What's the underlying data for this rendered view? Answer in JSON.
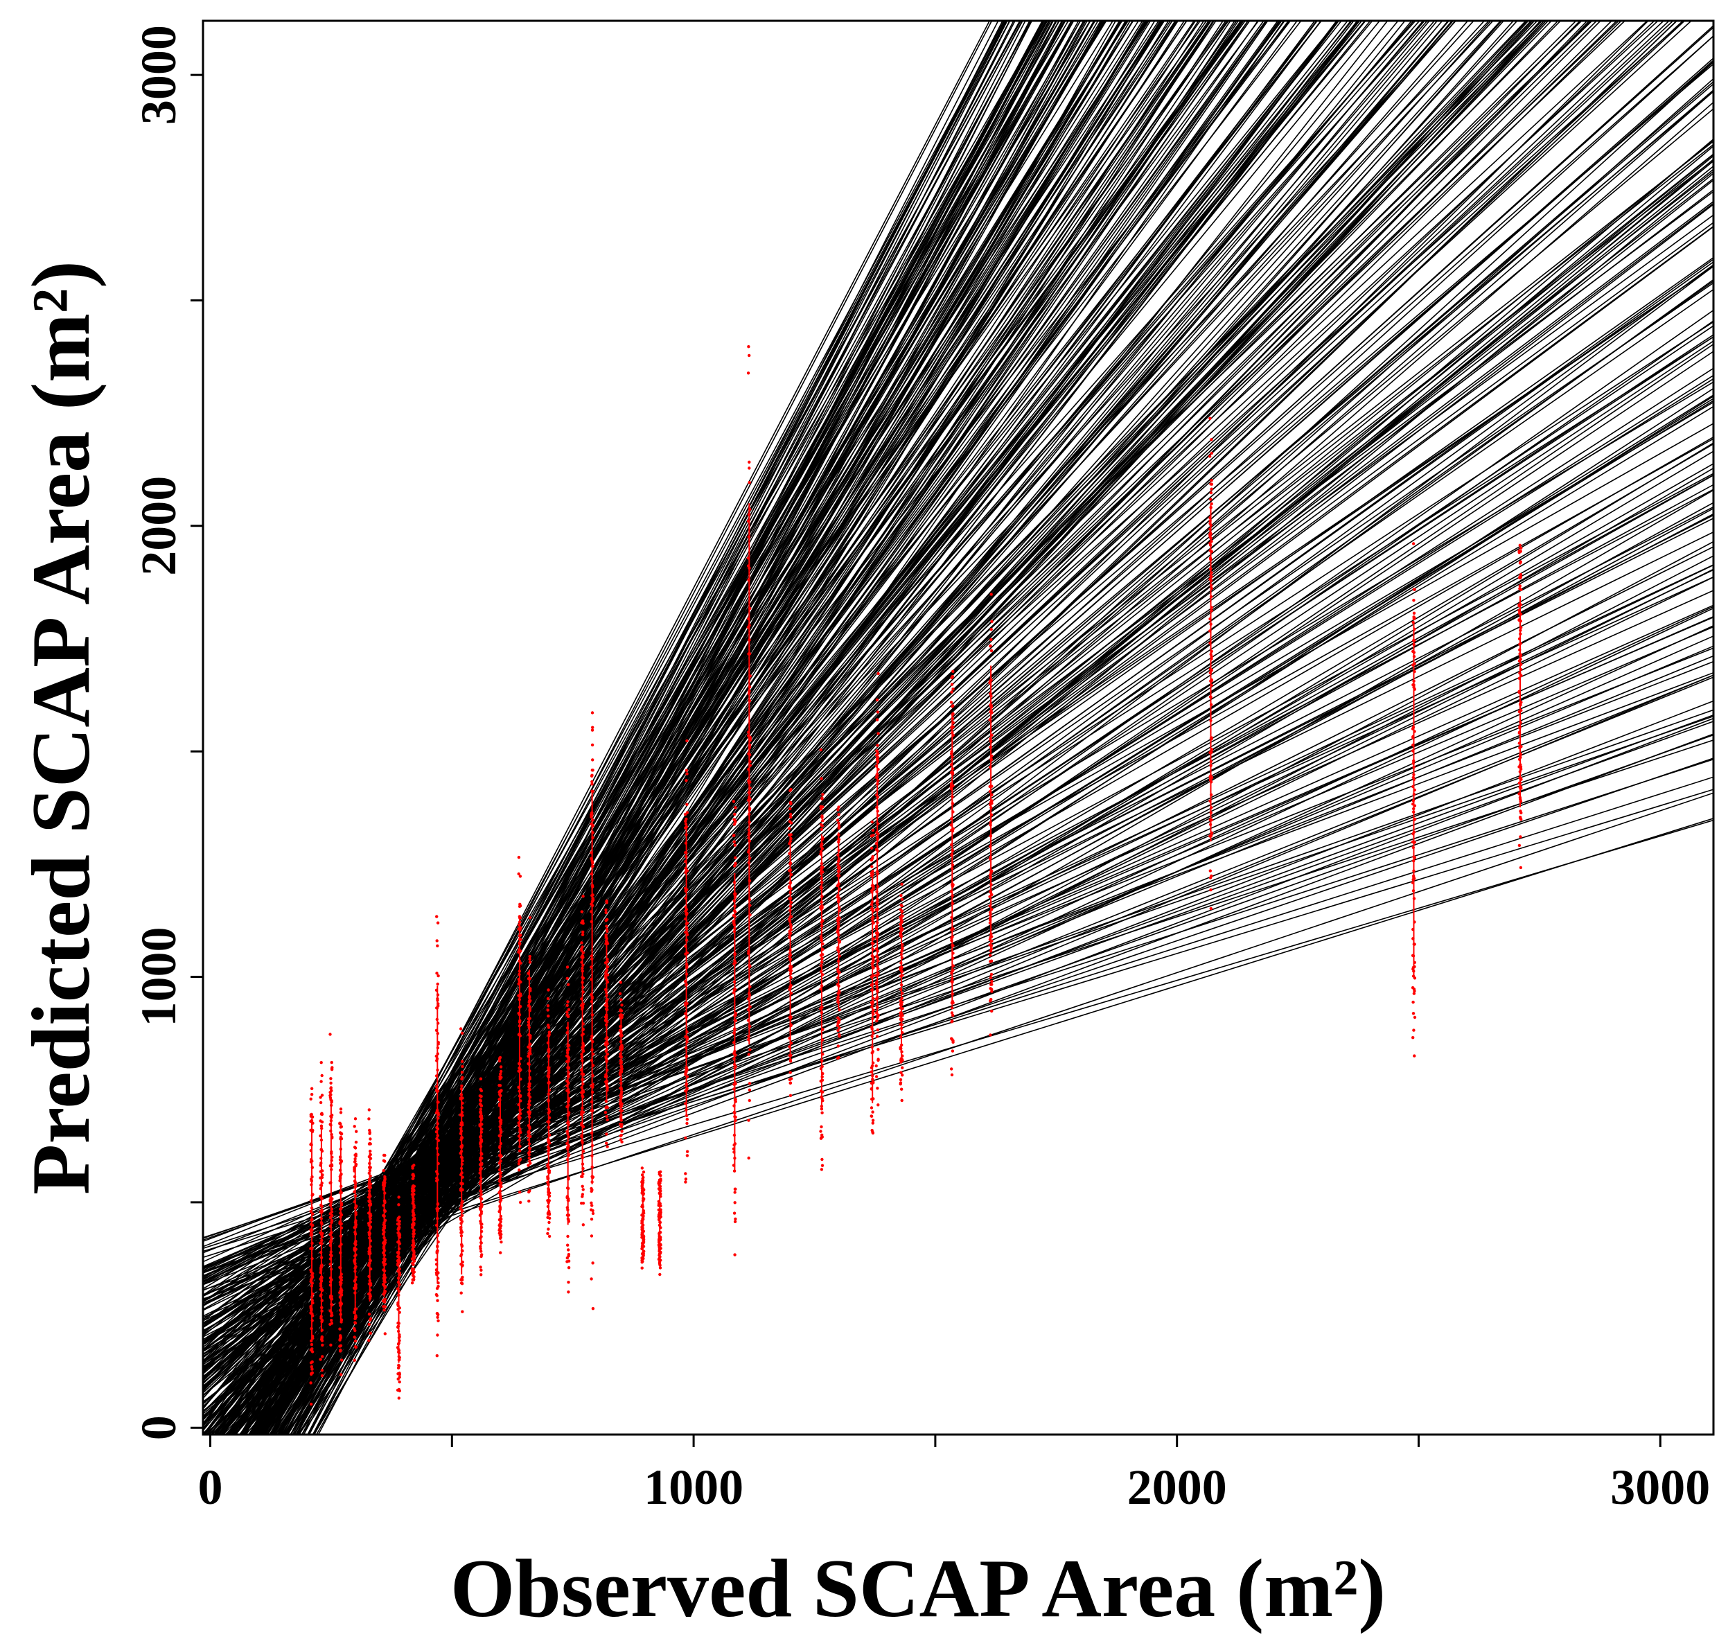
{
  "chart_data": {
    "type": "scatter",
    "title": "",
    "xlabel": "Observed SCAP Area (m²)",
    "ylabel": "Predicted SCAP Area (m²)",
    "xlim": [
      -15,
      3110
    ],
    "ylim": [
      -15,
      3120
    ],
    "x_ticks": [
      0,
      500,
      1000,
      1500,
      2000,
      2500,
      3000
    ],
    "x_tick_labels": [
      "0",
      "",
      "1000",
      "",
      "2000",
      "",
      "3000"
    ],
    "y_ticks": [
      0,
      500,
      1000,
      1500,
      2000,
      2500,
      3000
    ],
    "y_tick_labels": [
      "0",
      "",
      "1000",
      "",
      "2000",
      "",
      "3000"
    ],
    "grid": false,
    "legend": "none",
    "series": [
      {
        "name": "regression lines",
        "kind": "fan of fitted lines",
        "color": "#000000",
        "pivot": [
          420,
          520
        ],
        "slope_range": [
          0.32,
          2.1
        ],
        "intercept_range": [
          -400,
          330
        ]
      },
      {
        "name": "predicted values",
        "kind": "vertical point stacks per observed area",
        "color": "#ff0000",
        "columns": [
          {
            "x": 210,
            "y_min": 30,
            "y_max": 850
          },
          {
            "x": 230,
            "y_min": 60,
            "y_max": 820
          },
          {
            "x": 250,
            "y_min": 90,
            "y_max": 880
          },
          {
            "x": 270,
            "y_min": 100,
            "y_max": 780
          },
          {
            "x": 300,
            "y_min": 140,
            "y_max": 700
          },
          {
            "x": 330,
            "y_min": 170,
            "y_max": 720
          },
          {
            "x": 360,
            "y_min": 200,
            "y_max": 650
          },
          {
            "x": 390,
            "y_min": 40,
            "y_max": 560
          },
          {
            "x": 420,
            "y_min": 300,
            "y_max": 600
          },
          {
            "x": 470,
            "y_min": 100,
            "y_max": 1200
          },
          {
            "x": 520,
            "y_min": 200,
            "y_max": 900
          },
          {
            "x": 560,
            "y_min": 300,
            "y_max": 800
          },
          {
            "x": 600,
            "y_min": 350,
            "y_max": 850
          },
          {
            "x": 640,
            "y_min": 450,
            "y_max": 1300
          },
          {
            "x": 660,
            "y_min": 480,
            "y_max": 1150
          },
          {
            "x": 700,
            "y_min": 350,
            "y_max": 1000
          },
          {
            "x": 740,
            "y_min": 300,
            "y_max": 1050
          },
          {
            "x": 770,
            "y_min": 400,
            "y_max": 1200
          },
          {
            "x": 790,
            "y_min": 250,
            "y_max": 1700
          },
          {
            "x": 820,
            "y_min": 600,
            "y_max": 1200
          },
          {
            "x": 850,
            "y_min": 600,
            "y_max": 1000
          },
          {
            "x": 895,
            "y_min": 330,
            "y_max": 600
          },
          {
            "x": 930,
            "y_min": 330,
            "y_max": 600
          },
          {
            "x": 985,
            "y_min": 480,
            "y_max": 1550
          },
          {
            "x": 1085,
            "y_min": 350,
            "y_max": 1450
          },
          {
            "x": 1115,
            "y_min": 450,
            "y_max": 2450
          },
          {
            "x": 1200,
            "y_min": 650,
            "y_max": 1480
          },
          {
            "x": 1265,
            "y_min": 500,
            "y_max": 1520
          },
          {
            "x": 1300,
            "y_min": 800,
            "y_max": 1450
          },
          {
            "x": 1370,
            "y_min": 550,
            "y_max": 1400
          },
          {
            "x": 1380,
            "y_min": 700,
            "y_max": 1700
          },
          {
            "x": 1430,
            "y_min": 700,
            "y_max": 1250
          },
          {
            "x": 1535,
            "y_min": 720,
            "y_max": 1800
          },
          {
            "x": 1615,
            "y_min": 850,
            "y_max": 1900
          },
          {
            "x": 2070,
            "y_min": 1050,
            "y_max": 2300
          },
          {
            "x": 2490,
            "y_min": 740,
            "y_max": 2050
          },
          {
            "x": 2710,
            "y_min": 1220,
            "y_max": 2000
          }
        ]
      }
    ]
  }
}
